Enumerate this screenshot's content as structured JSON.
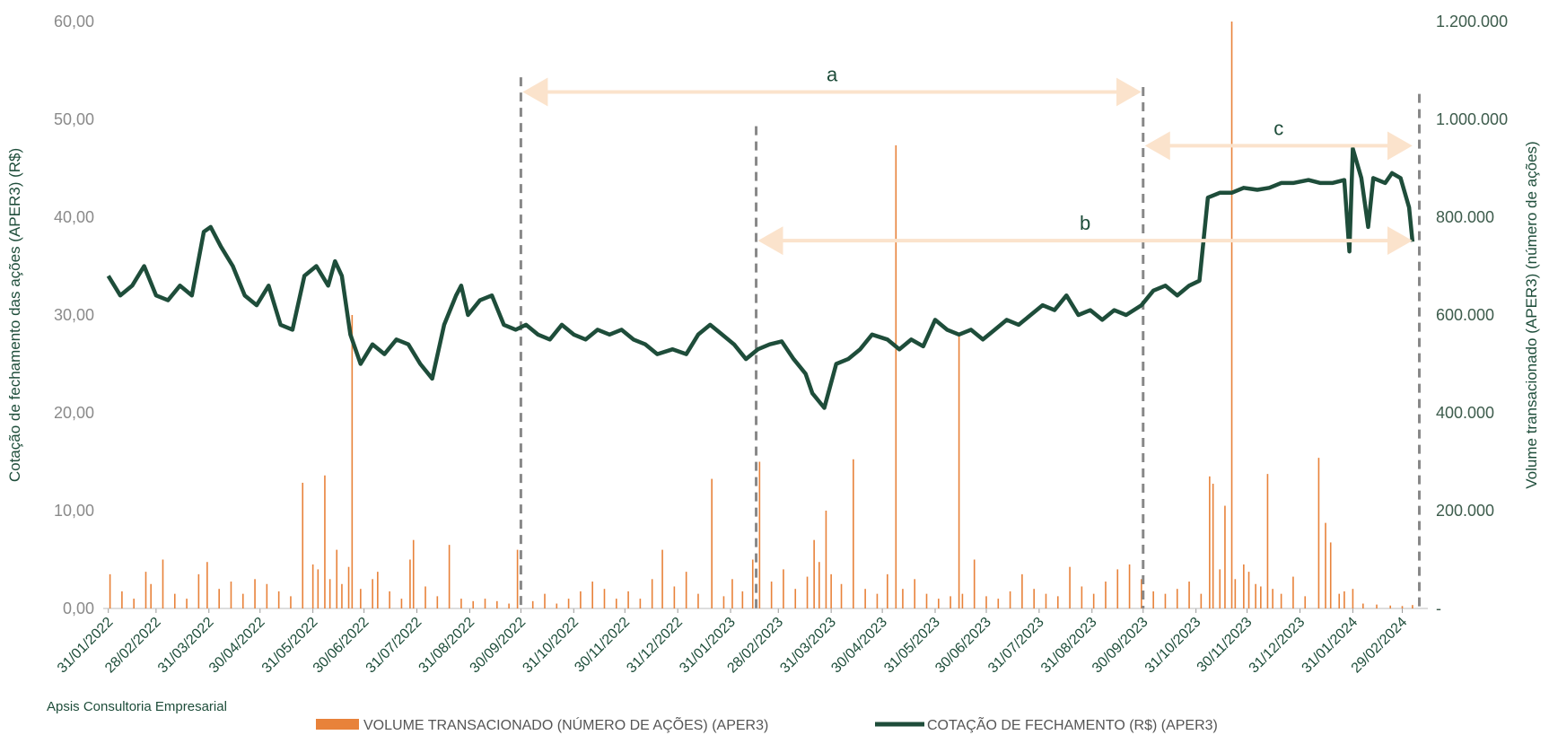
{
  "chart_data": {
    "type": "combo",
    "source": "Apsis Consultoria Empresarial",
    "y_label": "Cotação de fechamento das ações (APER3) (R$)",
    "y2_label": "Volume transacionado (APER3) (número de ações)",
    "xlim": [
      "28/01/2022",
      "15/03/2024"
    ],
    "xticks": [
      "31/01/2022",
      "28/02/2022",
      "31/03/2022",
      "30/04/2022",
      "31/05/2022",
      "30/06/2022",
      "31/07/2022",
      "31/08/2022",
      "30/09/2022",
      "31/10/2022",
      "30/11/2022",
      "31/12/2022",
      "31/01/2023",
      "28/02/2023",
      "31/03/2023",
      "30/04/2023",
      "31/05/2023",
      "30/06/2023",
      "31/07/2023",
      "31/08/2023",
      "30/09/2023",
      "31/10/2023",
      "30/11/2023",
      "31/12/2023",
      "31/01/2024",
      "29/02/2024"
    ],
    "ylim": [
      0,
      60
    ],
    "yticks": [
      {
        "value": 0,
        "label": "0,00"
      },
      {
        "value": 10,
        "label": "10,00"
      },
      {
        "value": 20,
        "label": "20,00"
      },
      {
        "value": 30,
        "label": "30,00"
      },
      {
        "value": 40,
        "label": "40,00"
      },
      {
        "value": 50,
        "label": "50,00"
      },
      {
        "value": 60,
        "label": "60,00"
      }
    ],
    "y2lim": [
      0,
      1200000
    ],
    "y2ticks": [
      {
        "value": 0,
        "label": "-"
      },
      {
        "value": 200000,
        "label": "200.000"
      },
      {
        "value": 400000,
        "label": "400.000"
      },
      {
        "value": 600000,
        "label": "600.000"
      },
      {
        "value": 800000,
        "label": "800.000"
      },
      {
        "value": 1000000,
        "label": "1.000.000"
      },
      {
        "value": 1200000,
        "label": "1.200.000"
      }
    ],
    "series": [
      {
        "name": "VOLUME TRANSACIONADO (NÚMERO DE AÇÕES) (APER3)",
        "type": "bar",
        "axis": "y2",
        "color": "#e8823a",
        "x": [
          "01/02/2022",
          "08/02/2022",
          "15/02/2022",
          "22/02/2022",
          "25/02/2022",
          "04/03/2022",
          "11/03/2022",
          "18/03/2022",
          "25/03/2022",
          "30/03/2022",
          "06/04/2022",
          "13/04/2022",
          "20/04/2022",
          "27/04/2022",
          "04/05/2022",
          "11/05/2022",
          "18/05/2022",
          "25/05/2022",
          "31/05/2022",
          "03/06/2022",
          "07/06/2022",
          "10/06/2022",
          "14/06/2022",
          "17/06/2022",
          "21/06/2022",
          "23/06/2022",
          "28/06/2022",
          "05/07/2022",
          "08/07/2022",
          "15/07/2022",
          "22/07/2022",
          "27/07/2022",
          "29/07/2022",
          "05/08/2022",
          "12/08/2022",
          "19/08/2022",
          "26/08/2022",
          "02/09/2022",
          "09/09/2022",
          "16/09/2022",
          "23/09/2022",
          "28/09/2022",
          "07/10/2022",
          "14/10/2022",
          "21/10/2022",
          "28/10/2022",
          "04/11/2022",
          "11/11/2022",
          "18/11/2022",
          "25/11/2022",
          "02/12/2022",
          "09/12/2022",
          "16/12/2022",
          "22/12/2022",
          "29/12/2022",
          "05/01/2023",
          "12/01/2023",
          "20/01/2023",
          "27/01/2023",
          "01/02/2023",
          "07/02/2023",
          "13/02/2023",
          "17/02/2023",
          "24/02/2023",
          "03/03/2023",
          "10/03/2023",
          "17/03/2023",
          "21/03/2023",
          "24/03/2023",
          "28/03/2023",
          "31/03/2023",
          "06/04/2023",
          "13/04/2023",
          "20/04/2023",
          "27/04/2023",
          "03/05/2023",
          "08/05/2023",
          "12/05/2023",
          "19/05/2023",
          "26/05/2023",
          "02/06/2023",
          "09/06/2023",
          "14/06/2023",
          "16/06/2023",
          "23/06/2023",
          "30/06/2023",
          "07/07/2023",
          "14/07/2023",
          "21/07/2023",
          "28/07/2023",
          "04/08/2023",
          "11/08/2023",
          "18/08/2023",
          "25/08/2023",
          "01/09/2023",
          "08/09/2023",
          "15/09/2023",
          "22/09/2023",
          "29/09/2023",
          "06/10/2023",
          "13/10/2023",
          "20/10/2023",
          "27/10/2023",
          "03/11/2023",
          "08/11/2023",
          "10/11/2023",
          "14/11/2023",
          "17/11/2023",
          "21/11/2023",
          "23/11/2023",
          "28/11/2023",
          "01/12/2023",
          "05/12/2023",
          "08/12/2023",
          "12/12/2023",
          "15/12/2023",
          "20/12/2023",
          "27/12/2023",
          "03/01/2024",
          "11/01/2024",
          "15/01/2024",
          "18/01/2024",
          "23/01/2024",
          "26/01/2024",
          "31/01/2024",
          "06/02/2024",
          "14/02/2024",
          "22/02/2024",
          "29/02/2024",
          "06/03/2024"
        ],
        "values": [
          70000,
          35000,
          20000,
          75000,
          50000,
          100000,
          30000,
          20000,
          70000,
          95000,
          40000,
          55000,
          30000,
          60000,
          50000,
          35000,
          25000,
          257000,
          90000,
          80000,
          272000,
          60000,
          120000,
          50000,
          85000,
          600000,
          40000,
          60000,
          75000,
          35000,
          20000,
          100000,
          140000,
          45000,
          25000,
          130000,
          20000,
          15000,
          20000,
          15000,
          10000,
          120000,
          15000,
          30000,
          10000,
          20000,
          35000,
          55000,
          40000,
          20000,
          35000,
          20000,
          60000,
          120000,
          45000,
          75000,
          30000,
          265000,
          25000,
          60000,
          35000,
          100000,
          300000,
          55000,
          80000,
          40000,
          65000,
          140000,
          95000,
          200000,
          70000,
          50000,
          305000,
          40000,
          30000,
          70000,
          947000,
          40000,
          60000,
          30000,
          20000,
          25000,
          560000,
          30000,
          100000,
          25000,
          20000,
          35000,
          70000,
          40000,
          30000,
          25000,
          85000,
          45000,
          30000,
          55000,
          80000,
          90000,
          60000,
          35000,
          30000,
          40000,
          55000,
          30000,
          270000,
          255000,
          80000,
          210000,
          1200000,
          60000,
          90000,
          75000,
          50000,
          45000,
          275000,
          40000,
          30000,
          65000,
          25000,
          308000,
          175000,
          135000,
          30000,
          35000,
          40000,
          10000,
          8000,
          6000,
          5000,
          7000
        ]
      },
      {
        "name": "COTAÇÃO DE FECHAMENTO (R$) (APER3)",
        "type": "line",
        "color": "#1e4d3a",
        "x": [
          "31/01/2022",
          "07/02/2022",
          "14/02/2022",
          "21/02/2022",
          "28/02/2022",
          "07/03/2022",
          "14/03/2022",
          "21/03/2022",
          "28/03/2022",
          "01/04/2022",
          "07/04/2022",
          "14/04/2022",
          "21/04/2022",
          "28/04/2022",
          "05/05/2022",
          "12/05/2022",
          "19/05/2022",
          "26/05/2022",
          "02/06/2022",
          "09/06/2022",
          "13/06/2022",
          "17/06/2022",
          "22/06/2022",
          "28/06/2022",
          "05/07/2022",
          "12/07/2022",
          "19/07/2022",
          "26/07/2022",
          "02/08/2022",
          "09/08/2022",
          "16/08/2022",
          "23/08/2022",
          "26/08/2022",
          "30/08/2022",
          "06/09/2022",
          "13/09/2022",
          "20/09/2022",
          "27/09/2022",
          "03/10/2022",
          "10/10/2022",
          "17/10/2022",
          "24/10/2022",
          "31/10/2022",
          "07/11/2022",
          "14/11/2022",
          "21/11/2022",
          "28/11/2022",
          "05/12/2022",
          "12/12/2022",
          "19/12/2022",
          "28/12/2022",
          "05/01/2023",
          "12/01/2023",
          "19/01/2023",
          "26/01/2023",
          "02/02/2023",
          "09/02/2023",
          "16/02/2023",
          "23/02/2023",
          "02/03/2023",
          "09/03/2023",
          "16/03/2023",
          "20/03/2023",
          "27/03/2023",
          "03/04/2023",
          "10/04/2023",
          "17/04/2023",
          "24/04/2023",
          "03/05/2023",
          "10/05/2023",
          "17/05/2023",
          "24/05/2023",
          "31/05/2023",
          "07/06/2023",
          "14/06/2023",
          "21/06/2023",
          "28/06/2023",
          "05/07/2023",
          "12/07/2023",
          "19/07/2023",
          "26/07/2023",
          "02/08/2023",
          "09/08/2023",
          "16/08/2023",
          "23/08/2023",
          "30/08/2023",
          "06/09/2023",
          "13/09/2023",
          "20/09/2023",
          "29/09/2023",
          "06/10/2023",
          "13/10/2023",
          "20/10/2023",
          "27/10/2023",
          "02/11/2023",
          "07/11/2023",
          "14/11/2023",
          "21/11/2023",
          "28/11/2023",
          "06/12/2023",
          "13/12/2023",
          "20/12/2023",
          "27/12/2023",
          "05/01/2024",
          "12/01/2024",
          "19/01/2024",
          "26/01/2024",
          "29/01/2024",
          "31/01/2024",
          "05/02/2024",
          "09/02/2024",
          "12/02/2024",
          "19/02/2024",
          "23/02/2024",
          "28/02/2024",
          "04/03/2024",
          "06/03/2024"
        ],
        "values": [
          34,
          32,
          33,
          35,
          32,
          31.5,
          33,
          32,
          38.5,
          39,
          37,
          35,
          32,
          31,
          33,
          29,
          28.5,
          34,
          35,
          33,
          35.5,
          34,
          28,
          25,
          27,
          26,
          27.5,
          27,
          25,
          23.5,
          29,
          32,
          33,
          30,
          31.5,
          32,
          29,
          28.5,
          29,
          28,
          27.5,
          29,
          28,
          27.5,
          28.5,
          28,
          28.5,
          27.5,
          27,
          26,
          26.5,
          26,
          28,
          29,
          28,
          27,
          25.5,
          26.5,
          27,
          27.3,
          25.5,
          24,
          22,
          20.5,
          25,
          25.5,
          26.5,
          28,
          27.5,
          26.5,
          27.5,
          26.8,
          29.5,
          28.5,
          28,
          28.5,
          27.5,
          28.5,
          29.5,
          29,
          30,
          31,
          30.5,
          32,
          30,
          30.5,
          29.5,
          30.5,
          30,
          31,
          32.5,
          33,
          32,
          33,
          33.5,
          42,
          42.5,
          42.5,
          43,
          42.8,
          43,
          43.5,
          43.5,
          43.8,
          43.5,
          43.5,
          43.8,
          36.5,
          47,
          44,
          39,
          44,
          43.5,
          44.5,
          44,
          41,
          37.5
        ]
      }
    ],
    "vlines": [
      {
        "x": "30/09/2022",
        "top": 54.3
      },
      {
        "x": "15/02/2023",
        "top": 49.3
      },
      {
        "x": "30/09/2023",
        "top": 53.3
      },
      {
        "x": "10/03/2024",
        "top": 52.6
      }
    ],
    "annotations": [
      {
        "label": "a",
        "start": "30/09/2022",
        "end": "30/09/2023",
        "y": 52.8
      },
      {
        "label": "b",
        "start": "15/02/2023",
        "end": "07/03/2024",
        "y": 37.6
      },
      {
        "label": "c",
        "start": "30/09/2023",
        "end": "07/03/2024",
        "y": 47.3
      }
    ]
  }
}
